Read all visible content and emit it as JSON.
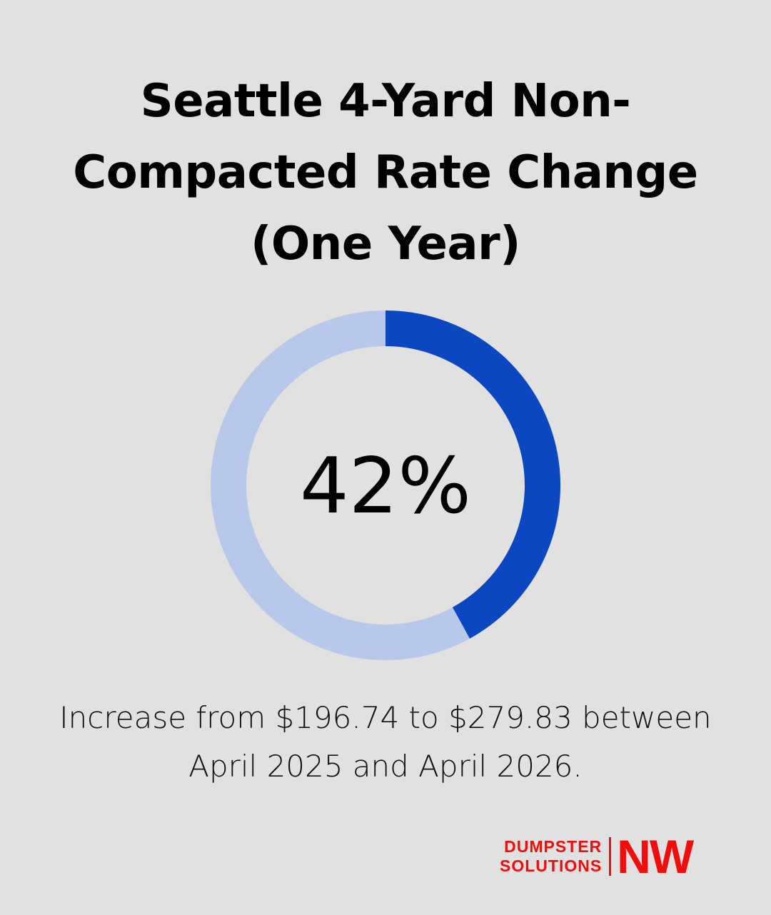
{
  "chart_data": {
    "type": "donut",
    "title": "Seattle 4-Yard Non-Compacted Rate Change (One Year)",
    "values": [
      42
    ],
    "value_labels": [
      "42%"
    ],
    "color": "#0c47c2",
    "track_color": "#b7c8ea",
    "caption": "Increase from $196.74 to $279.83 between April 2025 and April 2026."
  },
  "logo": {
    "line1": "DUMPSTER",
    "line2": "SOLUTIONS",
    "mark": "NW"
  }
}
